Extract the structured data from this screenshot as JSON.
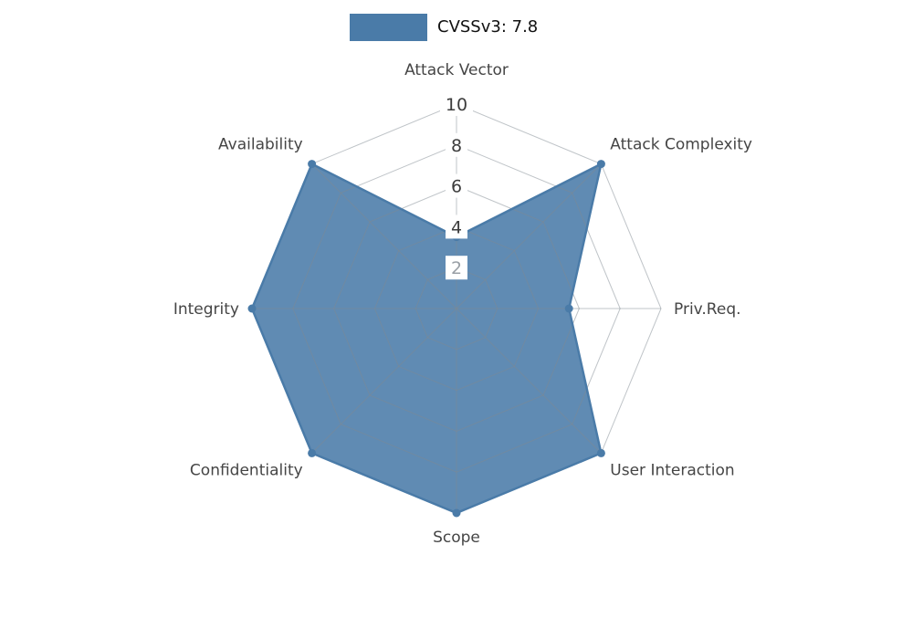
{
  "page": {
    "background": "#ffffff"
  },
  "legend": {
    "label": "CVSSv3: 7.8",
    "swatch_color": "#4a7ba8"
  },
  "chart_data": {
    "type": "radar",
    "title": "CVSSv3: 7.8",
    "categories": [
      "Attack Vector",
      "Attack Complexity",
      "Priv.Req.",
      "User Interaction",
      "Scope",
      "Confidentiality",
      "Integrity",
      "Availability"
    ],
    "series": [
      {
        "name": "CVSSv3: 7.8",
        "color": "#4a7ba8",
        "fill_opacity": 0.88,
        "values": [
          3.5,
          10,
          5.5,
          10,
          10,
          10,
          10,
          10
        ]
      }
    ],
    "radial_ticks": [
      2,
      4,
      6,
      8,
      10
    ],
    "rlim": [
      0,
      10
    ],
    "start_angle_deg": 90,
    "direction": "clockwise",
    "grid": true,
    "legend_position": "top-center",
    "colors": {
      "grid": "#808a92",
      "grid_opacity": 0.5,
      "tick_label": "#3c3c3c",
      "tick_label_min": "#9aa0a6",
      "tick_box": "#ffffff",
      "axis_label": "#454545"
    }
  }
}
